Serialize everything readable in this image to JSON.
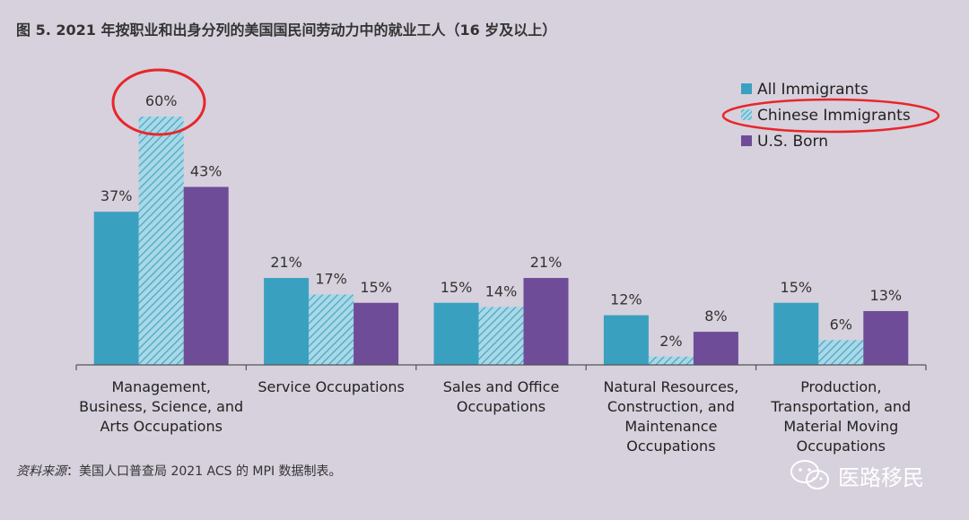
{
  "title": "图 5. 2021 年按职业和出身分列的美国国民间劳动力中的就业工人（16 岁及以上）",
  "source_label": "资料来源",
  "source_text": "：美国人口普查局 2021 ACS 的 MPI 数据制表。",
  "watermark_text": "医路移民",
  "colors": {
    "all_immigrants": "#3aa0c0",
    "chinese_immigrants": "#a9d8e6",
    "chinese_hatch": "#4aa6c6",
    "us_born": "#6e4c98",
    "highlight": "#e8262a",
    "axis": "#555555"
  },
  "chart_data": {
    "type": "bar",
    "categories": [
      "Management, Business, Science, and Arts Occupations",
      "Service Occupations",
      "Sales and Office Occupations",
      "Natural Resources, Construction, and Maintenance Occupations",
      "Production, Transportation, and Material Moving Occupations"
    ],
    "category_lines": [
      [
        "Management,",
        "Business, Science, and",
        "Arts Occupations"
      ],
      [
        "Service Occupations"
      ],
      [
        "Sales and Office",
        "Occupations"
      ],
      [
        "Natural Resources,",
        "Construction, and",
        "Maintenance",
        "Occupations"
      ],
      [
        "Production,",
        "Transportation, and",
        "Material Moving",
        "Occupations"
      ]
    ],
    "series": [
      {
        "name": "All Immigrants",
        "values": [
          37,
          21,
          15,
          12,
          15
        ],
        "labels": [
          "37%",
          "21%",
          "15%",
          "12%",
          "15%"
        ]
      },
      {
        "name": "Chinese Immigrants",
        "values": [
          60,
          17,
          14,
          2,
          6
        ],
        "labels": [
          "60%",
          "17%",
          "14%",
          "2%",
          "6%"
        ]
      },
      {
        "name": "U.S. Born",
        "values": [
          43,
          15,
          21,
          8,
          13
        ],
        "labels": [
          "43%",
          "15%",
          "21%",
          "8%",
          "13%"
        ]
      }
    ],
    "ylim": [
      0,
      60
    ],
    "legend_position": "top-right",
    "grid": false,
    "highlighted": [
      "60% data label",
      "Chinese Immigrants legend entry"
    ]
  }
}
